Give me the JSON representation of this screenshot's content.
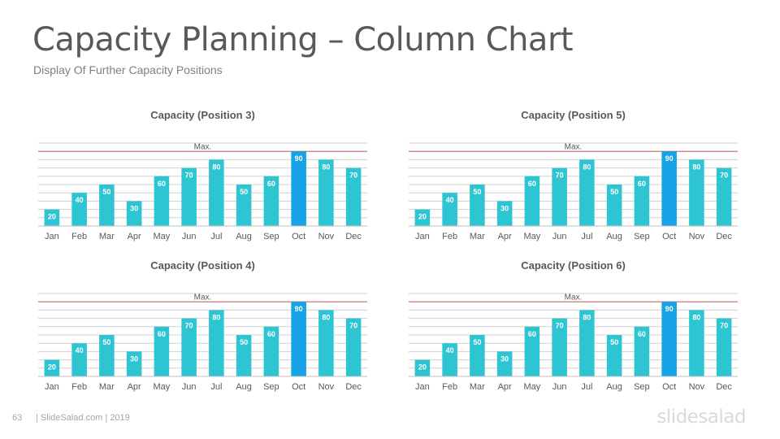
{
  "slide": {
    "title": "Capacity Planning – Column Chart",
    "subtitle": "Display Of Further Capacity Positions",
    "page_number": "63",
    "credit": "| SlideSalad.com | 2019",
    "logo": "slidesalad"
  },
  "colors": {
    "bar": "#2ec5d3",
    "bar_highlight": "#16a4e6",
    "max_line": "#c0504d",
    "grid": "#d0d0d0",
    "title_text": "#595959",
    "axis_text": "#595959"
  },
  "chart_data": [
    {
      "type": "bar",
      "title": "Capacity (Position 3)",
      "categories": [
        "Jan",
        "Feb",
        "Mar",
        "Apr",
        "May",
        "Jun",
        "Jul",
        "Aug",
        "Sep",
        "Oct",
        "Nov",
        "Dec"
      ],
      "values": [
        20,
        40,
        50,
        30,
        60,
        70,
        80,
        50,
        60,
        90,
        80,
        70
      ],
      "highlight_index": 9,
      "max_label": "Max.",
      "max_value": 90,
      "ylim": [
        0,
        100
      ],
      "grid": true,
      "xlabel": "",
      "ylabel": ""
    },
    {
      "type": "bar",
      "title": "Capacity (Position 5)",
      "categories": [
        "Jan",
        "Feb",
        "Mar",
        "Apr",
        "May",
        "Jun",
        "Jul",
        "Aug",
        "Sep",
        "Oct",
        "Nov",
        "Dec"
      ],
      "values": [
        20,
        40,
        50,
        30,
        60,
        70,
        80,
        50,
        60,
        90,
        80,
        70
      ],
      "highlight_index": 9,
      "max_label": "Max.",
      "max_value": 90,
      "ylim": [
        0,
        100
      ],
      "grid": true,
      "xlabel": "",
      "ylabel": ""
    },
    {
      "type": "bar",
      "title": "Capacity (Position 4)",
      "categories": [
        "Jan",
        "Feb",
        "Mar",
        "Apr",
        "May",
        "Jun",
        "Jul",
        "Aug",
        "Sep",
        "Oct",
        "Nov",
        "Dec"
      ],
      "values": [
        20,
        40,
        50,
        30,
        60,
        70,
        80,
        50,
        60,
        90,
        80,
        70
      ],
      "highlight_index": 9,
      "max_label": "Max.",
      "max_value": 90,
      "ylim": [
        0,
        100
      ],
      "grid": true,
      "xlabel": "",
      "ylabel": ""
    },
    {
      "type": "bar",
      "title": "Capacity (Position 6)",
      "categories": [
        "Jan",
        "Feb",
        "Mar",
        "Apr",
        "May",
        "Jun",
        "Jul",
        "Aug",
        "Sep",
        "Oct",
        "Nov",
        "Dec"
      ],
      "values": [
        20,
        40,
        50,
        30,
        60,
        70,
        80,
        50,
        60,
        90,
        80,
        70
      ],
      "highlight_index": 9,
      "max_label": "Max.",
      "max_value": 90,
      "ylim": [
        0,
        100
      ],
      "grid": true,
      "xlabel": "",
      "ylabel": ""
    }
  ]
}
